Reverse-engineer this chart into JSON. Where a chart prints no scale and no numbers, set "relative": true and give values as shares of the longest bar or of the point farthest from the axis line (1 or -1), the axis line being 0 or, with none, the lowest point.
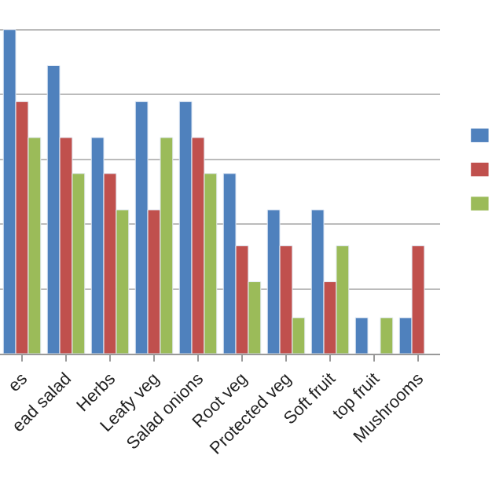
{
  "chart_data": {
    "type": "bar",
    "relative": true,
    "grid": "y",
    "categories": [
      "es",
      "ead salad",
      "Herbs",
      "Leafy veg",
      "Salad onions",
      "Root veg",
      "Protected veg",
      "Soft fruit",
      "top fruit",
      "Mushrooms"
    ],
    "series": [
      {
        "color": "#4f81bd",
        "values": [
          1,
          0.889,
          0.667,
          0.778,
          0.778,
          0.556,
          0.444,
          0.444,
          0.111,
          0.111
        ]
      },
      {
        "color": "#c0504d",
        "values": [
          0.778,
          0.667,
          0.556,
          0.444,
          0.667,
          0.333,
          0.333,
          0.222,
          null,
          0.333
        ]
      },
      {
        "color": "#9bbb59",
        "values": [
          0.667,
          0.556,
          0.444,
          0.667,
          0.556,
          0.222,
          0.111,
          0.333,
          0.111,
          null
        ]
      }
    ]
  }
}
